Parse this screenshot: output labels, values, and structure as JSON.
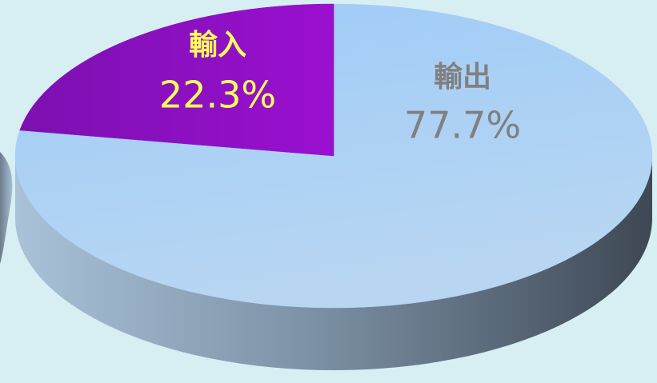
{
  "chart_data": {
    "type": "pie",
    "categories": [
      "輸出",
      "輸入"
    ],
    "values": [
      77.7,
      22.3
    ],
    "value_labels": [
      "77.7%",
      "22.3%"
    ],
    "colors": [
      "#a9cff6",
      "#8a0fc0"
    ],
    "label_colors": [
      "#808080",
      "#ffff5a"
    ]
  }
}
